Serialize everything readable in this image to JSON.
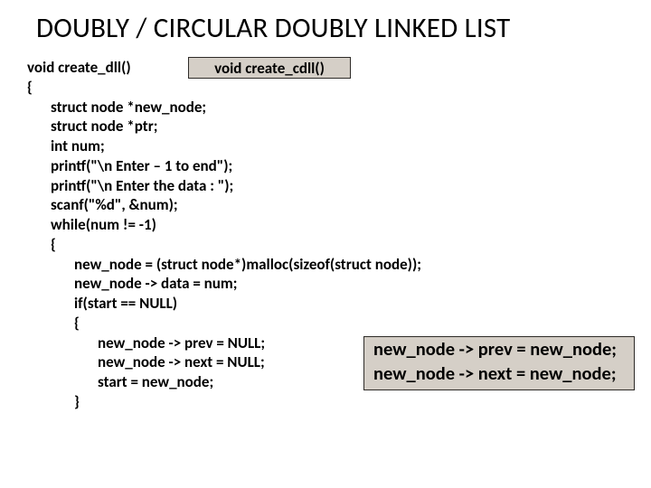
{
  "title": "DOUBLY / CIRCULAR DOUBLY LINKED LIST",
  "fn_cdll": "void create_cdll()",
  "code": {
    "l1": "void create_dll()",
    "l2": "{",
    "l3": "struct node *new_node;",
    "l4": "struct node *ptr;",
    "l5": "int num;",
    "l6": "printf(\"\\n Enter – 1 to end\");",
    "l7": "printf(\"\\n Enter the data : \");",
    "l8": "scanf(\"%d\", &num);",
    "l9": "while(num != -1)",
    "l10": "{",
    "l11": "new_node = (struct node*)malloc(sizeof(struct node));",
    "l12": "new_node -> data = num;",
    "l13": "if(start == NULL)",
    "l14": "{",
    "l15": "new_node -> prev = NULL;",
    "l16": "new_node -> next = NULL;",
    "l17": "start = new_node;",
    "l18": "}"
  },
  "rb": {
    "l1": "new_node -> prev = new_node;",
    "l2": "new_node -> next = new_node;"
  },
  "colors": {
    "box_bg": "#d5cfc7",
    "box_border": "#2e2b28",
    "text": "#000000",
    "bg": "#ffffff"
  }
}
